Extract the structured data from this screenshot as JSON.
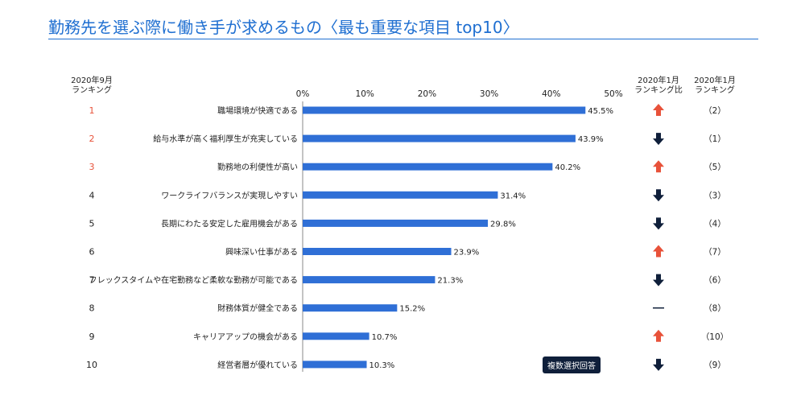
{
  "title": "勤務先を選ぶ際に働き手が求めるもの〈最も重要な項目 top10〉",
  "headers": {
    "rank_sep": [
      "2020年9月",
      "ランキング"
    ],
    "trend": [
      "2020年1月",
      "ランキング比"
    ],
    "rank_jan": [
      "2020年1月",
      "ランキング"
    ]
  },
  "badge": "複数選択回答",
  "colors": {
    "accent": "#1f6fd1",
    "bar": "#2f6fd6",
    "up": "#e8523a",
    "down": "#0f1f3a",
    "rank_highlight": "#e8523a"
  },
  "chart_data": {
    "type": "bar",
    "orientation": "horizontal",
    "xlim": [
      0,
      50
    ],
    "xticks": [
      "0%",
      "10%",
      "20%",
      "30%",
      "40%",
      "50%"
    ],
    "rows": [
      {
        "rank": "1",
        "label": "職場環境が快適である",
        "value": 45.5,
        "value_label": "45.5%",
        "trend": "up",
        "jan": "（2）"
      },
      {
        "rank": "2",
        "label": "給与水準が高く福利厚生が充実している",
        "value": 43.9,
        "value_label": "43.9%",
        "trend": "down",
        "jan": "（1）"
      },
      {
        "rank": "3",
        "label": "勤務地の利便性が高い",
        "value": 40.2,
        "value_label": "40.2%",
        "trend": "up",
        "jan": "（5）"
      },
      {
        "rank": "4",
        "label": "ワークライフバランスが実現しやすい",
        "value": 31.4,
        "value_label": "31.4%",
        "trend": "down",
        "jan": "（3）"
      },
      {
        "rank": "5",
        "label": "長期にわたる安定した雇用機会がある",
        "value": 29.8,
        "value_label": "29.8%",
        "trend": "down",
        "jan": "（4）"
      },
      {
        "rank": "6",
        "label": "興味深い仕事がある",
        "value": 23.9,
        "value_label": "23.9%",
        "trend": "up",
        "jan": "（7）"
      },
      {
        "rank": "7",
        "label": "フレックスタイムや在宅勤務など柔軟な勤務が可能である",
        "value": 21.3,
        "value_label": "21.3%",
        "trend": "down",
        "jan": "（6）"
      },
      {
        "rank": "8",
        "label": "財務体質が健全である",
        "value": 15.2,
        "value_label": "15.2%",
        "trend": "same",
        "jan": "（8）"
      },
      {
        "rank": "9",
        "label": "キャリアアップの機会がある",
        "value": 10.7,
        "value_label": "10.7%",
        "trend": "up",
        "jan": "（10）"
      },
      {
        "rank": "10",
        "label": "経営者層が優れている",
        "value": 10.3,
        "value_label": "10.3%",
        "trend": "down",
        "jan": "（9）"
      }
    ]
  }
}
